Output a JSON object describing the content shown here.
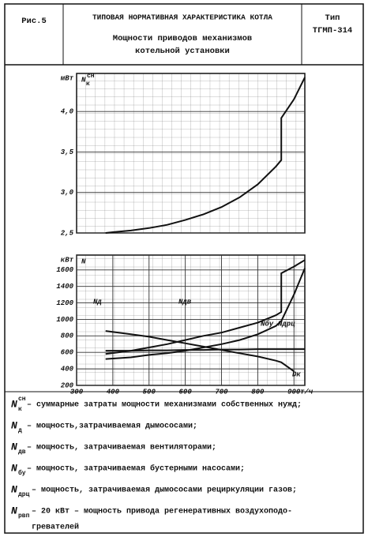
{
  "header": {
    "figure": "Рис.5",
    "title": "ТИПОВАЯ НОРМАТИВНАЯ ХАРАКТЕРИСТИКА КОТЛА",
    "subtitle_lines": [
      "Мощности приводов механизмов",
      "котельной установки"
    ],
    "type_label": "Тип",
    "type_value": "ТГМП-314"
  },
  "chart_data": [
    {
      "type": "line",
      "y_label": "N",
      "y_label_sub": "к",
      "y_label_sup": "сн",
      "y_unit": "мВт",
      "x": [
        380,
        400,
        450,
        500,
        550,
        600,
        650,
        700,
        750,
        800,
        850,
        865,
        865,
        900,
        930
      ],
      "series": [
        {
          "color": "#111",
          "values": [
            2.5,
            2.51,
            2.53,
            2.56,
            2.6,
            2.66,
            2.73,
            2.82,
            2.94,
            3.1,
            3.32,
            3.4,
            3.92,
            4.15,
            4.42
          ]
        }
      ],
      "xlim": [
        300,
        930
      ],
      "ylim": [
        2.5,
        4.47
      ],
      "yticks": [
        {
          "value": 2.5,
          "label": "2,5"
        },
        {
          "value": 3,
          "label": "3,0"
        },
        {
          "value": 3.5,
          "label": "3,5"
        },
        {
          "value": 4,
          "label": "4,0"
        }
      ],
      "grid": true
    },
    {
      "type": "line",
      "y_label": "N",
      "y_unit": "кВт",
      "x_unit": "т/ч",
      "x_label": "Dк",
      "x": [
        380,
        450,
        500,
        550,
        600,
        650,
        700,
        750,
        800,
        850,
        865,
        865,
        900,
        930
      ],
      "series": [
        {
          "name": "Nд",
          "color": "#111",
          "values": [
            580,
            620,
            660,
            700,
            750,
            800,
            840,
            900,
            960,
            1050,
            1090,
            1560,
            1640,
            1720
          ]
        },
        {
          "name": "Nдв",
          "color": "#111",
          "values": [
            520,
            540,
            570,
            590,
            620,
            660,
            700,
            750,
            820,
            920,
            980,
            980,
            1300,
            1620
          ]
        },
        {
          "name": "Nбу",
          "color": "#111",
          "values": [
            620,
            620,
            625,
            625,
            630,
            630,
            635,
            635,
            640,
            640,
            640,
            640,
            640,
            640
          ]
        },
        {
          "name": "Nдрц",
          "color": "#111",
          "values": [
            860,
            820,
            790,
            750,
            710,
            670,
            630,
            590,
            550,
            500,
            480,
            480,
            370,
            null
          ]
        }
      ],
      "xlim": [
        300,
        930
      ],
      "ylim": [
        200,
        1780
      ],
      "xticks": [
        300,
        400,
        500,
        600,
        700,
        800,
        900
      ],
      "yticks": [
        200,
        400,
        600,
        800,
        1000,
        1200,
        1400,
        1600
      ],
      "grid": true
    }
  ],
  "notes": [
    {
      "symbol": "N",
      "sub": "к",
      "sup": "сн",
      "lines": [
        "– суммарные затраты мощности механизмами собственных нужд;"
      ]
    },
    {
      "symbol": "N",
      "sub": "д",
      "lines": [
        "– мощность,затрачиваемая дымососами;"
      ]
    },
    {
      "symbol": "N",
      "sub": "дв",
      "lines": [
        "– мощность, затрачиваемая вентиляторами;"
      ]
    },
    {
      "symbol": "N",
      "sub": "бу",
      "lines": [
        "– мощность, затрачиваемая бустерными насосами;"
      ]
    },
    {
      "symbol": "N",
      "sub": "дрц",
      "lines": [
        "– мощность, затрачиваемая дымососами рециркуляции газов;"
      ]
    },
    {
      "symbol": "N",
      "sub": "рвп",
      "lines": [
        "– 20 кВт – мощность привода регенеративных воздухоподо-",
        "гревателей"
      ]
    }
  ]
}
